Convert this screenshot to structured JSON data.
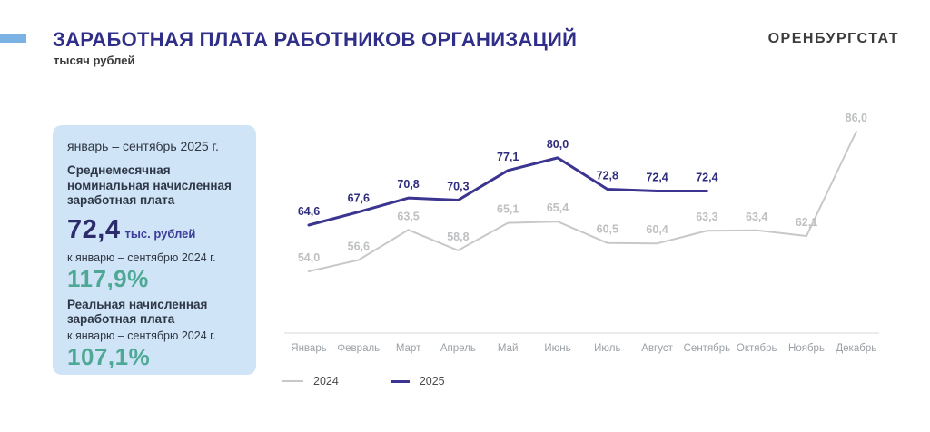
{
  "header": {
    "title": "ЗАРАБОТНАЯ ПЛАТА РАБОТНИКОВ ОРГАНИЗАЦИЙ",
    "subtitle": "тысяч рублей",
    "logo": "ОРЕНБУРГСТАТ"
  },
  "summary_card": {
    "period": "январь – сентябрь 2025 г.",
    "nominal": {
      "heading": "Среднемесячная номинальная начисленная заработная плата",
      "value": "72,4",
      "unit": "тыс. рублей",
      "compare_label": "к январю – сентябрю 2024 г.",
      "index": "117,9%"
    },
    "real": {
      "heading": "Реальная начисленная заработная плата",
      "compare_label": "к январю – сентябрю 2024 г.",
      "index": "107,1%"
    }
  },
  "chart_data": {
    "type": "line",
    "title": "Заработная плата работников организаций, тысяч рублей",
    "categories": [
      "Январь",
      "Февраль",
      "Март",
      "Апрель",
      "Май",
      "Июнь",
      "Июль",
      "Август",
      "Сентябрь",
      "Октябрь",
      "Ноябрь",
      "Декабрь"
    ],
    "series": [
      {
        "name": "2024",
        "values": [
          54.0,
          56.6,
          63.5,
          58.8,
          65.1,
          65.4,
          60.5,
          60.4,
          63.3,
          63.4,
          62.1,
          86.0
        ],
        "color": "#c7c8ca",
        "label_color": "#bec0c2",
        "line_width": 2
      },
      {
        "name": "2025",
        "values": [
          64.6,
          67.6,
          70.8,
          70.3,
          77.1,
          80.0,
          72.8,
          72.4,
          72.4,
          null,
          null,
          null
        ],
        "color": "#3b3490",
        "label_color": "#2f2d7e",
        "line_width": 3
      }
    ],
    "ylim": [
      54,
      86
    ],
    "grid": false,
    "data_labels": true,
    "value_format": "comma-decimal-1",
    "legend_position": "bottom-left",
    "axis_color": "#d8d9db",
    "month_label_color": "#9ba0a5"
  },
  "colors": {
    "accent_bar": "#7ab2e3",
    "title_navy": "#2f2e88",
    "card_bg": "#cfe4f6",
    "card_text": "#2e3542",
    "value_navy": "#2c2b6c",
    "unit_blue": "#3d3c9a",
    "index_teal": "#4fa896",
    "logo_text": "#3b3b3b"
  }
}
